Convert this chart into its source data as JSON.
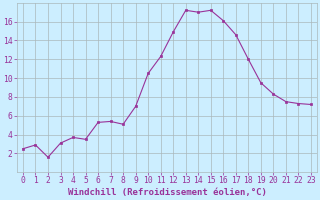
{
  "x": [
    0,
    1,
    2,
    3,
    4,
    5,
    6,
    7,
    8,
    9,
    10,
    11,
    12,
    13,
    14,
    15,
    16,
    17,
    18,
    19,
    20,
    21,
    22,
    23
  ],
  "y": [
    2.5,
    2.9,
    1.6,
    3.1,
    3.7,
    3.5,
    5.3,
    5.4,
    5.1,
    7.0,
    10.5,
    12.3,
    14.9,
    17.2,
    17.0,
    17.2,
    16.1,
    14.6,
    12.0,
    9.5,
    8.3,
    7.5,
    7.3,
    7.2
  ],
  "line_color": "#993399",
  "marker": "s",
  "marker_size": 2.0,
  "background_color": "#cceeff",
  "grid_color": "#aab8bb",
  "xlabel": "Windchill (Refroidissement éolien,°C)",
  "ylim": [
    0,
    18
  ],
  "xlim": [
    -0.5,
    23.5
  ],
  "yticks": [
    2,
    4,
    6,
    8,
    10,
    12,
    14,
    16
  ],
  "xticks": [
    0,
    1,
    2,
    3,
    4,
    5,
    6,
    7,
    8,
    9,
    10,
    11,
    12,
    13,
    14,
    15,
    16,
    17,
    18,
    19,
    20,
    21,
    22,
    23
  ],
  "tick_color": "#993399",
  "label_color": "#993399",
  "xlabel_fontsize": 6.5,
  "tick_fontsize": 5.8
}
